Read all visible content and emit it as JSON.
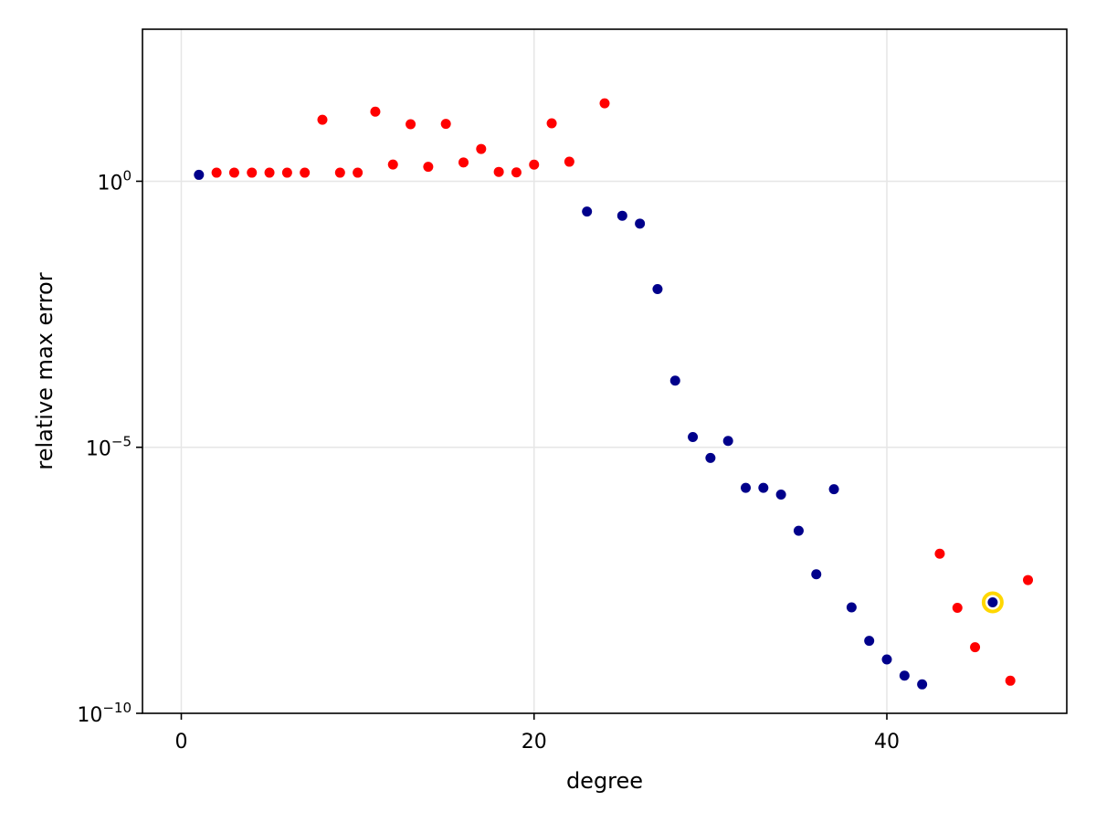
{
  "chart_data": {
    "type": "scatter",
    "xlabel": "degree",
    "ylabel": "relative max error",
    "yscale": "log",
    "xlim": [
      -2.2,
      50.2
    ],
    "ylim": [
      1e-10,
      720.0
    ],
    "xticks": [
      0,
      20,
      40
    ],
    "yticks": [
      {
        "value": 1,
        "base": "10",
        "exp": "0"
      },
      {
        "value": 1e-05,
        "base": "10",
        "exp": "−5"
      },
      {
        "value": 1e-10,
        "base": "10",
        "exp": "−10"
      }
    ],
    "grid": true,
    "colors": {
      "blue": "#00008b",
      "red": "#ff0000",
      "highlight": "#ffd700"
    },
    "points": [
      {
        "x": 1,
        "y": 1.32,
        "color": "blue"
      },
      {
        "x": 2,
        "y": 1.45,
        "color": "red"
      },
      {
        "x": 3,
        "y": 1.45,
        "color": "red"
      },
      {
        "x": 4,
        "y": 1.45,
        "color": "red"
      },
      {
        "x": 5,
        "y": 1.45,
        "color": "red"
      },
      {
        "x": 6,
        "y": 1.45,
        "color": "red"
      },
      {
        "x": 7,
        "y": 1.45,
        "color": "red"
      },
      {
        "x": 8,
        "y": 14.3,
        "color": "red"
      },
      {
        "x": 9,
        "y": 1.45,
        "color": "red"
      },
      {
        "x": 10,
        "y": 1.45,
        "color": "red"
      },
      {
        "x": 11,
        "y": 20.3,
        "color": "red"
      },
      {
        "x": 12,
        "y": 2.06,
        "color": "red"
      },
      {
        "x": 13,
        "y": 11.8,
        "color": "red"
      },
      {
        "x": 14,
        "y": 1.87,
        "color": "red"
      },
      {
        "x": 15,
        "y": 12.0,
        "color": "red"
      },
      {
        "x": 16,
        "y": 2.26,
        "color": "red"
      },
      {
        "x": 17,
        "y": 4.05,
        "color": "red"
      },
      {
        "x": 18,
        "y": 1.5,
        "color": "red"
      },
      {
        "x": 19,
        "y": 1.47,
        "color": "red"
      },
      {
        "x": 20,
        "y": 2.05,
        "color": "red"
      },
      {
        "x": 21,
        "y": 12.3,
        "color": "red"
      },
      {
        "x": 22,
        "y": 2.33,
        "color": "red"
      },
      {
        "x": 23,
        "y": 0.27,
        "color": "blue"
      },
      {
        "x": 24,
        "y": 29.2,
        "color": "red"
      },
      {
        "x": 25,
        "y": 0.225,
        "color": "blue"
      },
      {
        "x": 26,
        "y": 0.16,
        "color": "blue"
      },
      {
        "x": 27,
        "y": 0.0094,
        "color": "blue"
      },
      {
        "x": 28,
        "y": 0.000179,
        "color": "blue"
      },
      {
        "x": 29,
        "y": 1.56e-05,
        "color": "blue"
      },
      {
        "x": 30,
        "y": 6.3e-06,
        "color": "blue"
      },
      {
        "x": 31,
        "y": 1.32e-05,
        "color": "blue"
      },
      {
        "x": 32,
        "y": 1.73e-06,
        "color": "blue"
      },
      {
        "x": 33,
        "y": 1.73e-06,
        "color": "blue"
      },
      {
        "x": 34,
        "y": 1.29e-06,
        "color": "blue"
      },
      {
        "x": 35,
        "y": 2.7e-07,
        "color": "blue"
      },
      {
        "x": 36,
        "y": 4.1e-08,
        "color": "blue"
      },
      {
        "x": 37,
        "y": 1.63e-06,
        "color": "blue"
      },
      {
        "x": 38,
        "y": 9.8e-09,
        "color": "blue"
      },
      {
        "x": 39,
        "y": 2.3e-09,
        "color": "blue"
      },
      {
        "x": 40,
        "y": 1.03e-09,
        "color": "blue"
      },
      {
        "x": 41,
        "y": 5.1e-10,
        "color": "blue"
      },
      {
        "x": 42,
        "y": 3.5e-10,
        "color": "blue"
      },
      {
        "x": 43,
        "y": 1e-07,
        "color": "red"
      },
      {
        "x": 44,
        "y": 9.6e-09,
        "color": "red"
      },
      {
        "x": 45,
        "y": 1.75e-09,
        "color": "red"
      },
      {
        "x": 46,
        "y": 1.22e-08,
        "color": "blue",
        "highlight": true
      },
      {
        "x": 47,
        "y": 4.1e-10,
        "color": "red"
      },
      {
        "x": 48,
        "y": 3.2e-08,
        "color": "red"
      }
    ]
  }
}
